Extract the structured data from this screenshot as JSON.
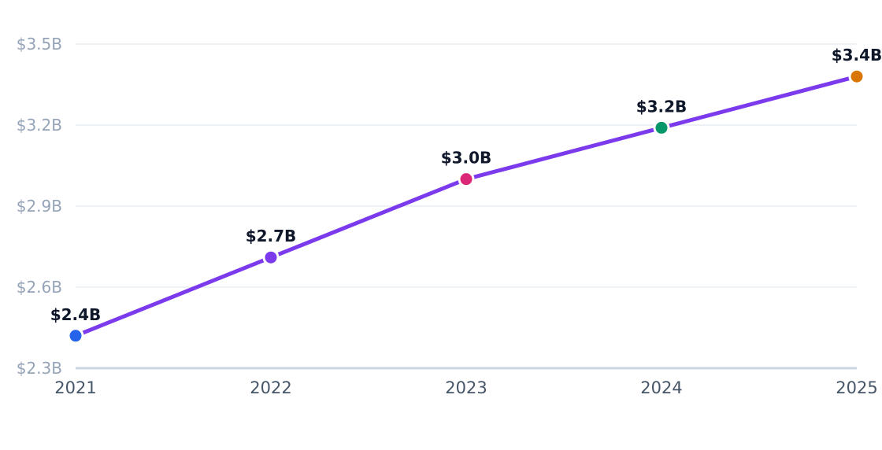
{
  "chart_data": {
    "type": "line",
    "x": [
      "2021",
      "2022",
      "2023",
      "2024",
      "2025"
    ],
    "series": [
      {
        "values": [
          2.42,
          2.71,
          3.0,
          3.19,
          3.38
        ],
        "color": "#7c3aed"
      }
    ],
    "data_labels": [
      "$2.4B",
      "$2.7B",
      "$3.0B",
      "$3.2B",
      "$3.4B"
    ],
    "point_colors": [
      "#2563eb",
      "#7c3aed",
      "#db2777",
      "#059669",
      "#d97706"
    ],
    "y_ticks": [
      {
        "value": 2.3,
        "label": "$2.3B"
      },
      {
        "value": 2.6,
        "label": "$2.6B"
      },
      {
        "value": 2.9,
        "label": "$2.9B"
      },
      {
        "value": 3.2,
        "label": "$3.2B"
      },
      {
        "value": 3.5,
        "label": "$3.5B"
      }
    ],
    "ylim": [
      2.3,
      3.5
    ],
    "title": "",
    "xlabel": "",
    "ylabel": "",
    "grid": true,
    "legend": "none",
    "colors": {
      "grid": "#eef1f5",
      "baseline": "#cbd5e1",
      "tick_y": "#94a3b8",
      "tick_x": "#475569",
      "label": "#0f172a"
    }
  }
}
